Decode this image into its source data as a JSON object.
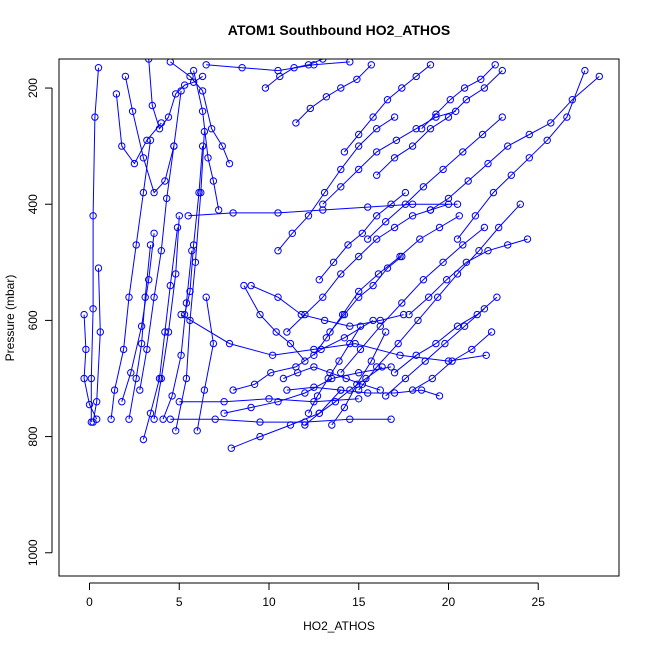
{
  "chart_data": {
    "type": "line",
    "title": "ATOM1 Southbound HO2_ATHOS",
    "xlabel": "HO2_ATHOS",
    "ylabel": "Pressure (mbar)",
    "xlim": [
      -1.7,
      29.5
    ],
    "ylim": [
      1040,
      150
    ],
    "y_reversed": true,
    "grid": false,
    "legend": "none",
    "marker": "open-circle",
    "xticks": [
      0,
      5,
      10,
      15,
      20,
      25
    ],
    "yticks": [
      200,
      400,
      600,
      800,
      1000
    ],
    "series_color": "#0000ff",
    "series": [
      {
        "x": [
          0.1,
          0.1,
          0.2,
          0.2,
          0.3,
          0.5
        ],
        "y": [
          775,
          700,
          580,
          420,
          250,
          165
        ]
      },
      {
        "x": [
          -0.3,
          -0.2,
          -0.3,
          0.0,
          0.4
        ],
        "y": [
          590,
          650,
          700,
          745,
          770
        ]
      },
      {
        "x": [
          0.2,
          0.4,
          0.6,
          0.5
        ],
        "y": [
          775,
          740,
          620,
          510
        ]
      },
      {
        "x": [
          1.2,
          1.4,
          1.9,
          2.2,
          2.6,
          3.0,
          3.4
        ],
        "y": [
          770,
          720,
          650,
          560,
          470,
          380,
          290
        ]
      },
      {
        "x": [
          1.8,
          2.3,
          2.9,
          3.3,
          3.6
        ],
        "y": [
          740,
          690,
          610,
          530,
          450
        ]
      },
      {
        "x": [
          2.2,
          2.6,
          2.9,
          3.1,
          3.4
        ],
        "y": [
          770,
          700,
          640,
          560,
          470
        ]
      },
      {
        "x": [
          3.0,
          3.4,
          3.9,
          4.2,
          4.5,
          4.9
        ],
        "y": [
          805,
          760,
          700,
          620,
          540,
          440
        ]
      },
      {
        "x": [
          2.8,
          3.2,
          3.6,
          4.0,
          4.3,
          4.7,
          5.1
        ],
        "y": [
          720,
          650,
          560,
          480,
          390,
          300,
          205
        ]
      },
      {
        "x": [
          3.6,
          4.0,
          4.4,
          4.8,
          5.0
        ],
        "y": [
          770,
          700,
          620,
          520,
          420
        ]
      },
      {
        "x": [
          4.1,
          4.6,
          5.1,
          5.4,
          5.7
        ],
        "y": [
          770,
          730,
          660,
          570,
          480
        ]
      },
      {
        "x": [
          4.8,
          5.4,
          5.6,
          5.9,
          6.2,
          6.4
        ],
        "y": [
          790,
          700,
          600,
          500,
          380,
          275
        ]
      },
      {
        "x": [
          5.3,
          5.6,
          5.8,
          6.1,
          6.3
        ],
        "y": [
          590,
          550,
          470,
          380,
          300
        ]
      },
      {
        "x": [
          6.0,
          6.4,
          6.9,
          6.5
        ],
        "y": [
          790,
          720,
          640,
          560
        ]
      },
      {
        "x": [
          1.5,
          1.8,
          2.5,
          3.2,
          4.0
        ],
        "y": [
          210,
          300,
          330,
          290,
          260
        ]
      },
      {
        "x": [
          2.0,
          2.4,
          3.0,
          3.6,
          4.2,
          4.7
        ],
        "y": [
          180,
          240,
          320,
          380,
          360,
          300
        ]
      },
      {
        "x": [
          3.3,
          3.5,
          3.9,
          4.4,
          4.8,
          5.3,
          5.8,
          6.3
        ],
        "y": [
          150,
          230,
          270,
          250,
          210,
          195,
          190,
          180
        ]
      },
      {
        "x": [
          5.8,
          6.3,
          6.6,
          6.9,
          7.2
        ],
        "y": [
          170,
          240,
          320,
          360,
          410
        ]
      },
      {
        "x": [
          4.5,
          5.6,
          6.3,
          6.8,
          7.4,
          7.8
        ],
        "y": [
          155,
          180,
          205,
          270,
          300,
          330
        ]
      },
      {
        "x": [
          5.1,
          7.8,
          10.2,
          12.5,
          14.8,
          17.3,
          20.0,
          22.1
        ],
        "y": [
          590,
          640,
          660,
          650,
          640,
          660,
          670,
          660
        ]
      },
      {
        "x": [
          7.9,
          9.5,
          11.2,
          12.8,
          14.0
        ],
        "y": [
          820,
          800,
          780,
          760,
          720
        ]
      },
      {
        "x": [
          7.5,
          9.0,
          10.5,
          12.0,
          13.5,
          15.0,
          16.8
        ],
        "y": [
          760,
          750,
          740,
          725,
          700,
          690,
          680
        ]
      },
      {
        "x": [
          8.0,
          9.2,
          10.1,
          11.5,
          12.9,
          14.2,
          15.8
        ],
        "y": [
          720,
          710,
          690,
          680,
          650,
          630,
          600
        ]
      },
      {
        "x": [
          9.0,
          10.5,
          11.8,
          13.1,
          14.5,
          16.2,
          17.5
        ],
        "y": [
          540,
          560,
          590,
          600,
          610,
          600,
          590
        ]
      },
      {
        "x": [
          8.6,
          9.5,
          10.4,
          11.2,
          12.0
        ],
        "y": [
          540,
          590,
          620,
          640,
          670
        ]
      },
      {
        "x": [
          10.8,
          11.6,
          12.5,
          13.4,
          14.3,
          15.2,
          16.2
        ],
        "y": [
          700,
          690,
          680,
          690,
          700,
          710,
          720
        ]
      },
      {
        "x": [
          12.0,
          12.8,
          13.7,
          14.5,
          15.4,
          16.3
        ],
        "y": [
          780,
          760,
          740,
          720,
          700,
          680
        ]
      },
      {
        "x": [
          13.5,
          14.2,
          14.9,
          15.7,
          16.5
        ],
        "y": [
          780,
          750,
          710,
          670,
          620
        ]
      },
      {
        "x": [
          11.0,
          12.0,
          13.0,
          14.0,
          15.0,
          16.0,
          17.0,
          18.0,
          19.0,
          20.0
        ],
        "y": [
          620,
          590,
          560,
          520,
          490,
          460,
          440,
          420,
          410,
          400
        ]
      },
      {
        "x": [
          10.5,
          11.3,
          12.2,
          13.1,
          14.0,
          15.0,
          16.0,
          17.0
        ],
        "y": [
          480,
          450,
          420,
          380,
          340,
          300,
          270,
          250
        ]
      },
      {
        "x": [
          12.5,
          13.2,
          14.1,
          15.0,
          16.1,
          17.3,
          18.4,
          19.5,
          20.6
        ],
        "y": [
          660,
          630,
          590,
          550,
          520,
          490,
          460,
          440,
          420
        ]
      },
      {
        "x": [
          14.0,
          15.1,
          16.2,
          17.4,
          18.6,
          19.7,
          20.8,
          22.0
        ],
        "y": [
          690,
          650,
          610,
          570,
          530,
          500,
          470,
          440
        ]
      },
      {
        "x": [
          15.0,
          16.0,
          17.2,
          18.3,
          19.4,
          20.5,
          21.7,
          22.8,
          24.0
        ],
        "y": [
          720,
          680,
          640,
          600,
          560,
          520,
          480,
          440,
          400
        ]
      },
      {
        "x": [
          16.5,
          17.6,
          18.7,
          19.8,
          20.9,
          22.0
        ],
        "y": [
          730,
          700,
          670,
          640,
          610,
          580
        ]
      },
      {
        "x": [
          17.0,
          18.2,
          19.3,
          20.5,
          21.6,
          22.7
        ],
        "y": [
          690,
          660,
          640,
          610,
          590,
          560
        ]
      },
      {
        "x": [
          18.0,
          19.1,
          20.2,
          21.3,
          22.4
        ],
        "y": [
          720,
          700,
          670,
          650,
          620
        ]
      },
      {
        "x": [
          17.8,
          18.9,
          19.9,
          21.0,
          22.2,
          23.3,
          24.4
        ],
        "y": [
          590,
          560,
          530,
          500,
          480,
          470,
          460
        ]
      },
      {
        "x": [
          13.0,
          14.0,
          15.0,
          16.0,
          17.1,
          18.2,
          19.3,
          20.4
        ],
        "y": [
          400,
          370,
          340,
          310,
          290,
          270,
          250,
          240
        ]
      },
      {
        "x": [
          15.5,
          16.5,
          17.6,
          18.6,
          19.7,
          20.8,
          21.9,
          23.0
        ],
        "y": [
          460,
          430,
          400,
          370,
          340,
          310,
          280,
          250
        ]
      },
      {
        "x": [
          19.0,
          20.0,
          21.1,
          22.2,
          23.3,
          24.5,
          25.7,
          26.9,
          28.4
        ],
        "y": [
          410,
          390,
          360,
          330,
          300,
          280,
          260,
          220,
          180
        ]
      },
      {
        "x": [
          20.5,
          21.5,
          22.5,
          23.5,
          24.5,
          25.5,
          26.6,
          27.6
        ],
        "y": [
          460,
          420,
          380,
          350,
          320,
          290,
          250,
          170
        ]
      },
      {
        "x": [
          16.0,
          17.0,
          18.0,
          19.0,
          20.0,
          21.0,
          22.0,
          23.0
        ],
        "y": [
          350,
          320,
          300,
          270,
          250,
          220,
          200,
          170
        ]
      },
      {
        "x": [
          18.5,
          19.3,
          20.1,
          20.9,
          21.8,
          22.6
        ],
        "y": [
          270,
          245,
          220,
          200,
          185,
          160
        ]
      },
      {
        "x": [
          14.2,
          15.0,
          15.8,
          16.6,
          17.4,
          18.2,
          19.0
        ],
        "y": [
          310,
          280,
          250,
          220,
          200,
          180,
          160
        ]
      },
      {
        "x": [
          11.5,
          12.3,
          13.2,
          14.0,
          14.9,
          15.7
        ],
        "y": [
          260,
          235,
          215,
          200,
          185,
          160
        ]
      },
      {
        "x": [
          9.8,
          10.6,
          11.4,
          12.2,
          13.0
        ],
        "y": [
          200,
          180,
          165,
          160,
          150
        ]
      },
      {
        "x": [
          5.5,
          8.0,
          10.5,
          13.0,
          15.5,
          18.0,
          20.5
        ],
        "y": [
          420,
          415,
          415,
          410,
          405,
          400,
          400
        ]
      },
      {
        "x": [
          5.0,
          7.5,
          10.0,
          12.5,
          15.0
        ],
        "y": [
          740,
          740,
          735,
          740,
          735
        ]
      },
      {
        "x": [
          4.5,
          7.0,
          9.5,
          12.0,
          14.5,
          16.8
        ],
        "y": [
          770,
          770,
          775,
          775,
          770,
          770
        ]
      },
      {
        "x": [
          11.0,
          12.5,
          14.0,
          15.5,
          17.0,
          18.5,
          19.5
        ],
        "y": [
          720,
          715,
          720,
          725,
          725,
          720,
          730
        ]
      },
      {
        "x": [
          12.8,
          13.6,
          14.4,
          15.2,
          16.0,
          16.8,
          17.6
        ],
        "y": [
          530,
          500,
          470,
          450,
          420,
          400,
          380
        ]
      },
      {
        "x": [
          13.4,
          14.2,
          15.0,
          15.8,
          16.6,
          17.4
        ],
        "y": [
          620,
          590,
          560,
          540,
          510,
          490
        ]
      },
      {
        "x": [
          12.2,
          12.7,
          13.3,
          13.9,
          14.5,
          15.1
        ],
        "y": [
          760,
          730,
          700,
          670,
          640,
          610
        ]
      },
      {
        "x": [
          6.5,
          8.5,
          10.5,
          12.5,
          14.5
        ],
        "y": [
          160,
          165,
          170,
          160,
          155
        ]
      }
    ]
  }
}
